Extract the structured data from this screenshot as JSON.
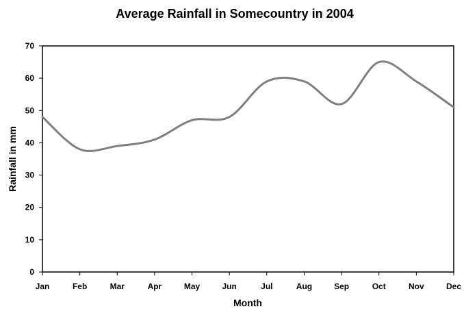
{
  "chart_data": {
    "type": "line",
    "title": "Average Rainfall in Somecountry in 2004",
    "xlabel": "Month",
    "ylabel": "Rainfall in mm",
    "categories": [
      "Jan",
      "Feb",
      "Mar",
      "Apr",
      "May",
      "Jun",
      "Jul",
      "Aug",
      "Sep",
      "Oct",
      "Nov",
      "Dec"
    ],
    "series": [
      {
        "values": [
          48,
          38,
          39,
          41,
          47,
          48,
          59,
          59,
          52,
          65,
          59,
          51
        ]
      }
    ],
    "ylim": [
      0,
      70
    ],
    "yticks": [
      0,
      10,
      20,
      30,
      40,
      50,
      60,
      70
    ],
    "grid": false,
    "legend": "none",
    "line_color": "#7f7f7f",
    "axis_color": "#000000"
  }
}
